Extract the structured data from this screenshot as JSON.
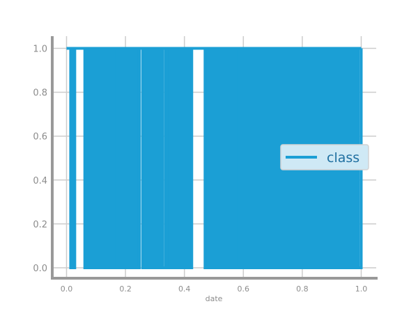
{
  "chart_data": {
    "type": "line",
    "title": "",
    "xlabel": "date",
    "ylabel": "",
    "xlim": [
      -0.05,
      1.05
    ],
    "ylim": [
      -0.05,
      1.05
    ],
    "grid": true,
    "legend_position": "center-right",
    "x_ticks": [
      0.0,
      0.2,
      0.4,
      0.6,
      0.8,
      1.0
    ],
    "x_tick_labels": [
      "0.0",
      "0.2",
      "0.4",
      "0.6",
      "0.8",
      "1.0"
    ],
    "y_ticks": [
      0.0,
      0.2,
      0.4,
      0.6,
      0.8,
      1.0
    ],
    "y_tick_labels": [
      "0.0",
      "0.2",
      "0.4",
      "0.6",
      "0.8",
      "1.0"
    ],
    "series": [
      {
        "name": "class",
        "color": "#1b9fd5",
        "high_ranges": [
          [
            0.0,
            0.014
          ],
          [
            0.028,
            0.062
          ],
          [
            0.171,
            0.177
          ],
          [
            0.247,
            0.258
          ],
          [
            0.335,
            0.34
          ],
          [
            0.425,
            0.47
          ],
          [
            0.585,
            0.59
          ]
        ],
        "low_ranges": [
          [
            0.014,
            0.028
          ],
          [
            0.065,
            0.171
          ],
          [
            0.177,
            0.243
          ],
          [
            0.258,
            0.33
          ],
          [
            0.34,
            0.425
          ],
          [
            0.47,
            0.585
          ],
          [
            0.59,
            0.995
          ]
        ],
        "x": [
          0.0,
          0.014,
          0.028,
          0.062,
          0.171,
          0.177,
          0.247,
          0.258,
          0.335,
          0.34,
          0.425,
          0.47,
          0.585,
          0.59,
          1.0
        ],
        "y": [
          1,
          0,
          1,
          0,
          1,
          0,
          1,
          0,
          1,
          0,
          1,
          0,
          1,
          0,
          1
        ]
      }
    ]
  }
}
